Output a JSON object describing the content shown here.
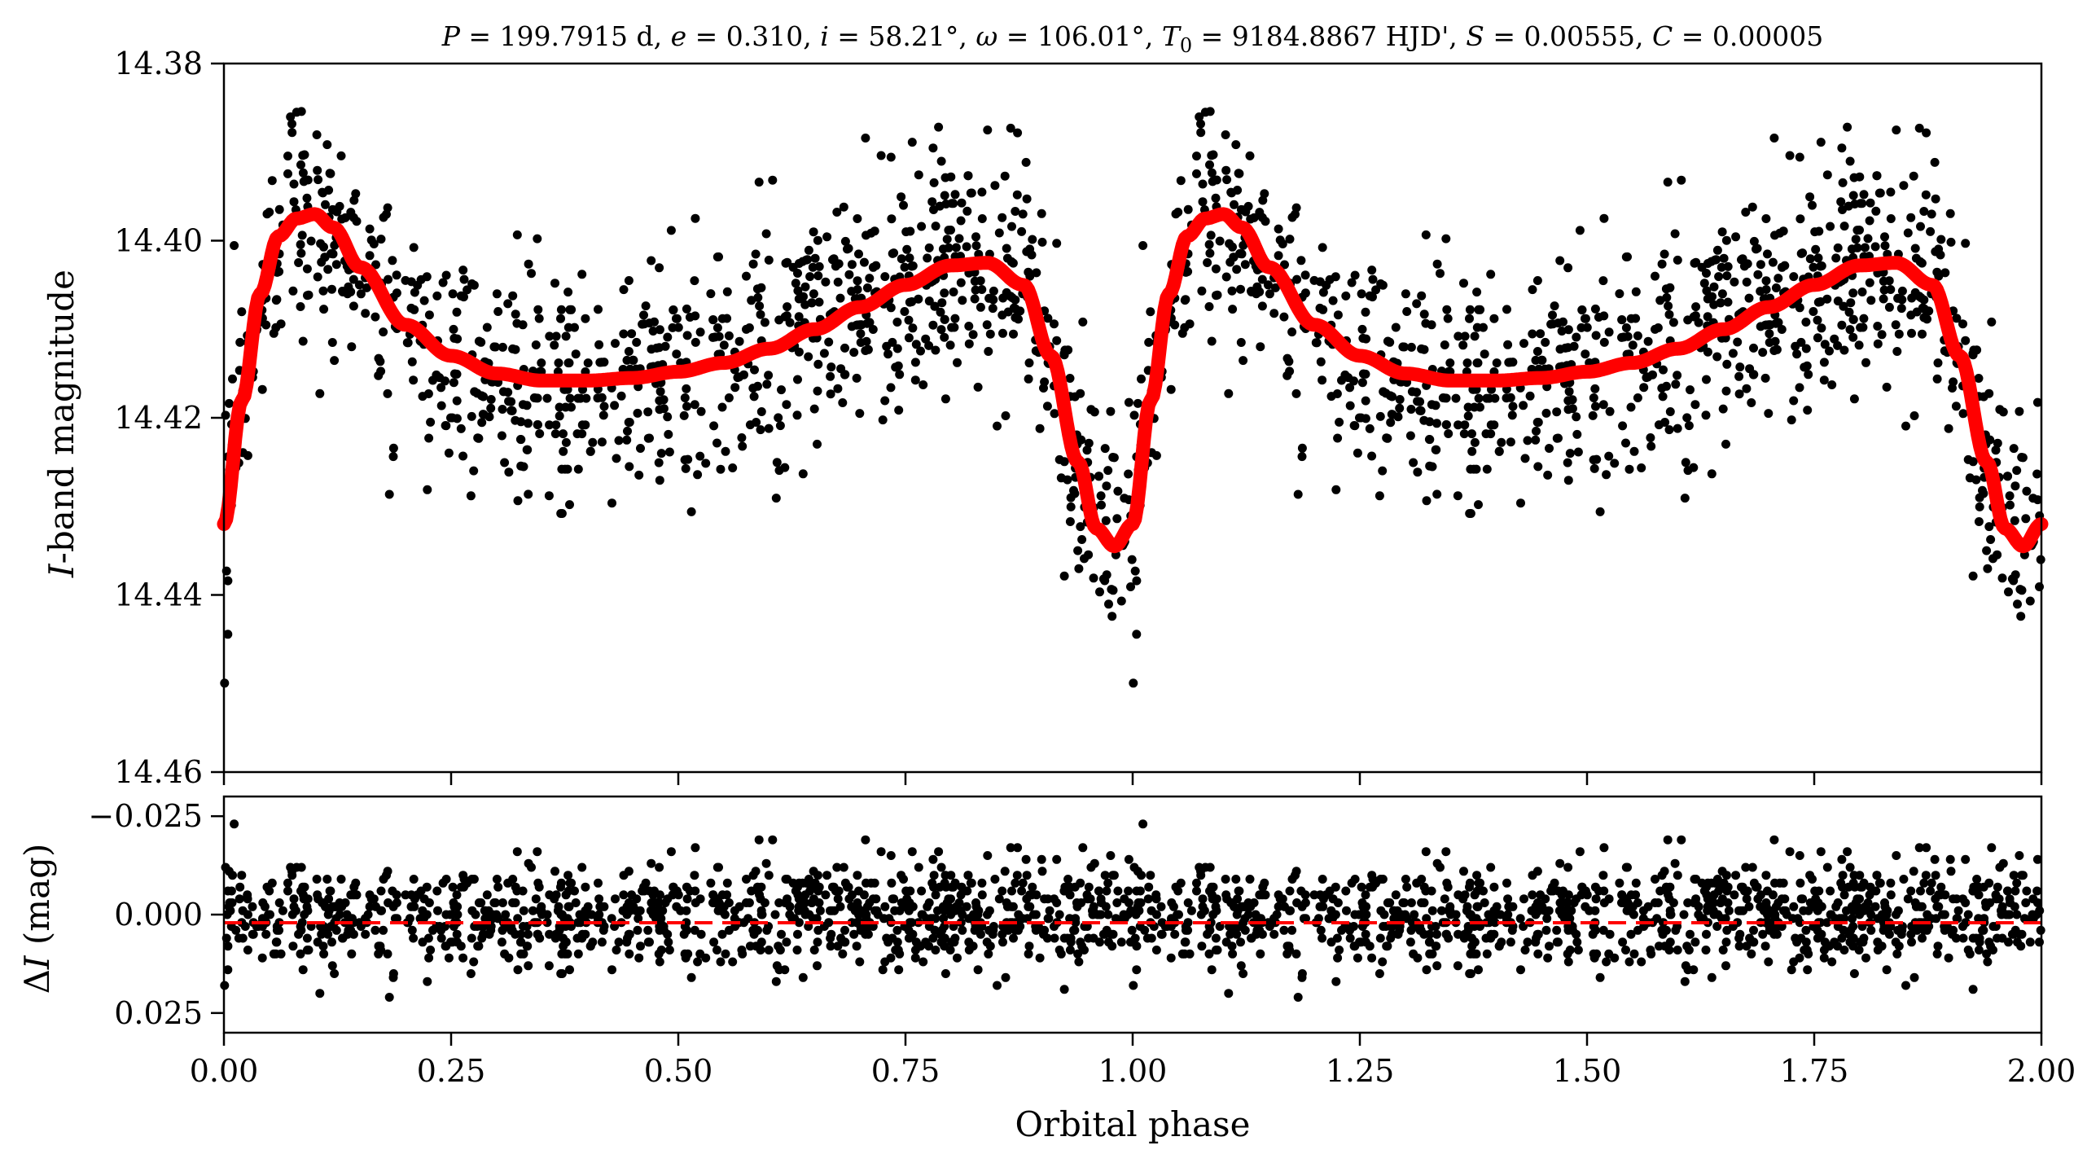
{
  "chart_data": [
    {
      "type": "scatter",
      "panel": "light-curve",
      "title": "P = 199.7915 d, e = 0.310, i = 58.21°, ω = 106.01°, T0 = 9184.8867 HJD', S = 0.00555, C = 0.00005",
      "title_parts": {
        "p_sym": "P",
        "p_val": " = 199.7915 d, ",
        "e_sym": "e",
        "e_val": " = 0.310, ",
        "i_sym": "i",
        "i_val": " = 58.21°, ",
        "w_sym": "ω",
        "w_val": " = 106.01°, ",
        "t_sym": "T",
        "t_sub": "0",
        "t_val": " = 9184.8867 HJD', ",
        "s_sym": "S",
        "s_val": " = 0.00555, ",
        "c_sym": "C",
        "c_val": " = 0.00005"
      },
      "xlabel": "",
      "ylabel": "I-band magnitude",
      "ylabel_parts": {
        "italic": "I",
        "rest": "-band magnitude"
      },
      "xlim": [
        0.0,
        2.0
      ],
      "ylim": [
        14.38,
        14.46
      ],
      "y_inverted": true,
      "yticks": [
        14.38,
        14.4,
        14.42,
        14.44,
        14.46
      ],
      "ytick_labels": [
        "14.38",
        "14.40",
        "14.42",
        "14.44",
        "14.46"
      ],
      "xticks": [
        0.0,
        0.25,
        0.5,
        0.75,
        1.0,
        1.25,
        1.5,
        1.75,
        2.0
      ],
      "series": [
        {
          "name": "observations",
          "kind": "scatter",
          "color": "#000000",
          "note": "~1000 phase-folded photometric points, shown twice (phase 0-2); approximate scatter about the model",
          "n_points_per_cycle": 1000,
          "scatter_sigma_mag": 0.0065
        },
        {
          "name": "model",
          "kind": "line",
          "color": "#ff0000",
          "x": [
            0.0,
            0.02,
            0.04,
            0.06,
            0.08,
            0.1,
            0.12,
            0.15,
            0.2,
            0.25,
            0.3,
            0.35,
            0.4,
            0.45,
            0.5,
            0.55,
            0.6,
            0.65,
            0.7,
            0.75,
            0.8,
            0.84,
            0.88,
            0.91,
            0.94,
            0.96,
            0.98,
            1.0
          ],
          "y": [
            14.432,
            14.418,
            14.406,
            14.3995,
            14.3975,
            14.397,
            14.3985,
            14.403,
            14.4095,
            14.413,
            14.415,
            14.4158,
            14.4158,
            14.4155,
            14.4148,
            14.4138,
            14.4122,
            14.41,
            14.4075,
            14.405,
            14.4028,
            14.4025,
            14.405,
            14.413,
            14.425,
            14.4325,
            14.4345,
            14.432
          ]
        }
      ]
    },
    {
      "type": "scatter",
      "panel": "residuals",
      "xlabel": "Orbital phase",
      "ylabel": "ΔI (mag)",
      "ylabel_parts": {
        "delta": "Δ",
        "italic": "I",
        "rest": " (mag)"
      },
      "xlim": [
        0.0,
        2.0
      ],
      "ylim": [
        -0.03,
        0.03
      ],
      "y_inverted": true,
      "yticks": [
        -0.025,
        0.0,
        0.025
      ],
      "ytick_labels": [
        "−0.025",
        "0.000",
        "0.025"
      ],
      "xticks": [
        0.0,
        0.25,
        0.5,
        0.75,
        1.0,
        1.25,
        1.5,
        1.75,
        2.0
      ],
      "xtick_labels": [
        "0.00",
        "0.25",
        "0.50",
        "0.75",
        "1.00",
        "1.25",
        "1.50",
        "1.75",
        "2.00"
      ],
      "series": [
        {
          "name": "residuals",
          "kind": "scatter",
          "color": "#000000",
          "scatter_sigma_mag": 0.0065
        },
        {
          "name": "zero-line",
          "kind": "dashed-line",
          "color": "#ff0000",
          "y": 0.0
        }
      ]
    }
  ]
}
